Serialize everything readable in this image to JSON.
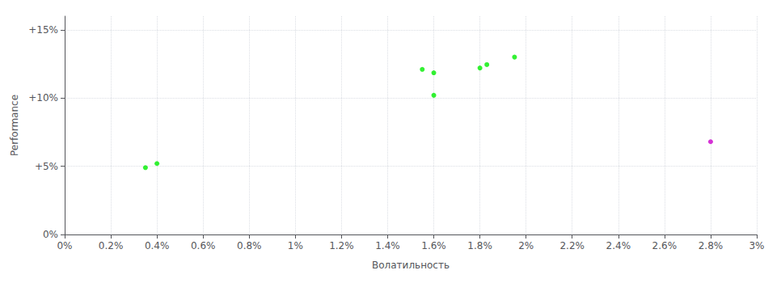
{
  "chart_data": {
    "type": "scatter",
    "xlabel": "Волатильность",
    "ylabel": "Performance",
    "series": [
      {
        "color": "#00ee00",
        "x": [
          0.0035,
          0.004,
          0.0155,
          0.016,
          0.016,
          0.018,
          0.0183,
          0.0195
        ],
        "values": [
          0.049,
          0.052,
          0.121,
          0.1185,
          0.102,
          0.122,
          0.1245,
          0.13
        ]
      },
      {
        "color": "#cc00cc",
        "x": [
          0.028
        ],
        "values": [
          0.068
        ]
      }
    ],
    "xlim": [
      0,
      0.03
    ],
    "xticks": [
      {
        "value": 0,
        "label": "0%"
      },
      {
        "value": 0.002,
        "label": "0.2%"
      },
      {
        "value": 0.004,
        "label": "0.4%"
      },
      {
        "value": 0.006,
        "label": "0.6%"
      },
      {
        "value": 0.008,
        "label": "0.8%"
      },
      {
        "value": 0.01,
        "label": "1%"
      },
      {
        "value": 0.012,
        "label": "1.2%"
      },
      {
        "value": 0.014,
        "label": "1.4%"
      },
      {
        "value": 0.016,
        "label": "1.6%"
      },
      {
        "value": 0.018,
        "label": "1.8%"
      },
      {
        "value": 0.02,
        "label": "2%"
      },
      {
        "value": 0.022,
        "label": "2.2%"
      },
      {
        "value": 0.024,
        "label": "2.4%"
      },
      {
        "value": 0.026,
        "label": "2.6%"
      },
      {
        "value": 0.028,
        "label": "2.8%"
      },
      {
        "value": 0.03,
        "label": "3%"
      }
    ],
    "ylim": [
      0,
      0.16
    ],
    "yticks": [
      {
        "value": 0,
        "label": "0%"
      },
      {
        "value": 0.05,
        "label": "+5%"
      },
      {
        "value": 0.1,
        "label": "+10%"
      },
      {
        "value": 0.15,
        "label": "+15%"
      }
    ],
    "grid": true
  }
}
